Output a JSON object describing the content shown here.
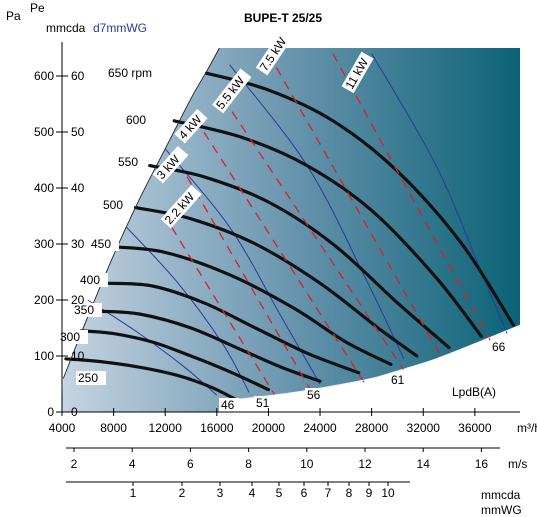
{
  "header": {
    "title": "BUPE-T 25/25",
    "left_unit_pa": "Pa",
    "left_unit_pe": "Pe",
    "left_unit_mmcda": "mmcda",
    "left_unit_mmwg": "d7mmWG"
  },
  "axes": {
    "pa_ticks": [
      "0",
      "100",
      "200",
      "300",
      "400",
      "500",
      "600"
    ],
    "pe_ticks": [
      "0",
      "10",
      "20",
      "30",
      "40",
      "50",
      "60"
    ],
    "flow_ticks": [
      "4000",
      "8000",
      "12000",
      "16000",
      "20000",
      "24000",
      "28000",
      "32000",
      "36000"
    ],
    "flow_unit": "m³/h",
    "velocity_ticks": [
      "2",
      "4",
      "6",
      "8",
      "10",
      "12",
      "14",
      "16"
    ],
    "velocity_unit": "m/s",
    "dyn_ticks": [
      "1",
      "2",
      "3",
      "4",
      "5",
      "6",
      "7",
      "8",
      "9",
      "10"
    ],
    "dyn_unit_1": "mmcda",
    "dyn_unit_2": "mmWG"
  },
  "colors": {
    "bg_left": "#c4d3e2",
    "bg_right": "#0d6478",
    "fan_curve": "#111111",
    "power_line": "#d8202a",
    "noise_line": "#2b3a9a"
  },
  "chart_data": {
    "type": "line",
    "title": "BUPE-T 25/25",
    "xlabel": "m³/h",
    "ylabel": "Pa",
    "xlim": [
      4000,
      39500
    ],
    "ylim": [
      0,
      650
    ],
    "rpm_labels": [
      "650 rpm",
      "600",
      "550",
      "500",
      "450",
      "400",
      "350",
      "300",
      "250"
    ],
    "series": [
      {
        "name": "650 rpm",
        "x": [
          15200,
          20000,
          25000,
          30000,
          35000,
          39000
        ],
        "y": [
          605,
          575,
          520,
          430,
          300,
          155
        ]
      },
      {
        "name": "600",
        "x": [
          12700,
          18000,
          23000,
          28000,
          33000,
          36500
        ],
        "y": [
          520,
          490,
          440,
          360,
          240,
          135
        ]
      },
      {
        "name": "550",
        "x": [
          10800,
          15000,
          20000,
          25000,
          30000,
          34000
        ],
        "y": [
          440,
          420,
          375,
          300,
          195,
          115
        ]
      },
      {
        "name": "500",
        "x": [
          9700,
          14000,
          19000,
          24000,
          28500,
          31500
        ],
        "y": [
          365,
          345,
          300,
          230,
          150,
          100
        ]
      },
      {
        "name": "450",
        "x": [
          8000,
          12000,
          17000,
          22000,
          26000,
          29500
        ],
        "y": [
          295,
          285,
          245,
          185,
          125,
          85
        ]
      },
      {
        "name": "400",
        "x": [
          7300,
          11000,
          15000,
          19000,
          23000,
          27000
        ],
        "y": [
          230,
          225,
          195,
          150,
          105,
          70
        ]
      },
      {
        "name": "350",
        "x": [
          6800,
          10000,
          14000,
          18000,
          21000,
          24000
        ],
        "y": [
          180,
          175,
          150,
          110,
          80,
          55
        ]
      },
      {
        "name": "300",
        "x": [
          5500,
          8000,
          11000,
          14000,
          17000,
          20000
        ],
        "y": [
          145,
          140,
          125,
          100,
          72,
          40
        ]
      },
      {
        "name": "250",
        "x": [
          4300,
          7000,
          10000,
          13000,
          15500,
          17500
        ],
        "y": [
          95,
          90,
          80,
          65,
          45,
          22
        ]
      }
    ],
    "power_lines": [
      {
        "label": "2.2 kW",
        "x": [
          12500,
          20500
        ],
        "y": [
          330,
          30
        ]
      },
      {
        "label": "3 kW",
        "x": [
          13700,
          23500
        ],
        "y": [
          420,
          30
        ]
      },
      {
        "label": "4 kW",
        "x": [
          15000,
          27500
        ],
        "y": [
          500,
          50
        ]
      },
      {
        "label": "5.5 kW",
        "x": [
          16500,
          30500
        ],
        "y": [
          560,
          75
        ]
      },
      {
        "label": "7.5 kW",
        "x": [
          20000,
          33500
        ],
        "y": [
          640,
          95
        ]
      },
      {
        "label": "11 kW",
        "x": [
          25000,
          37500
        ],
        "y": [
          640,
          115
        ]
      }
    ],
    "noise_labels": [
      "46",
      "51",
      "56",
      "61",
      "66"
    ],
    "noise_title": "LpdB(A)",
    "noise_lines": [
      {
        "label": "46",
        "x": [
          6000,
          10000,
          13500,
          16000
        ],
        "y": [
          200,
          140,
          80,
          30
        ]
      },
      {
        "label": "51",
        "x": [
          9000,
          13000,
          16500,
          18500
        ],
        "y": [
          330,
          230,
          120,
          35
        ]
      },
      {
        "label": "56",
        "x": [
          12000,
          17000,
          21000,
          24000
        ],
        "y": [
          470,
          330,
          170,
          50
        ]
      },
      {
        "label": "61",
        "x": [
          17000,
          23000,
          27500,
          30500
        ],
        "y": [
          620,
          440,
          240,
          95
        ]
      },
      {
        "label": "66",
        "x": [
          28000,
          33000,
          36500,
          38500
        ],
        "y": [
          640,
          440,
          250,
          140
        ]
      }
    ]
  }
}
